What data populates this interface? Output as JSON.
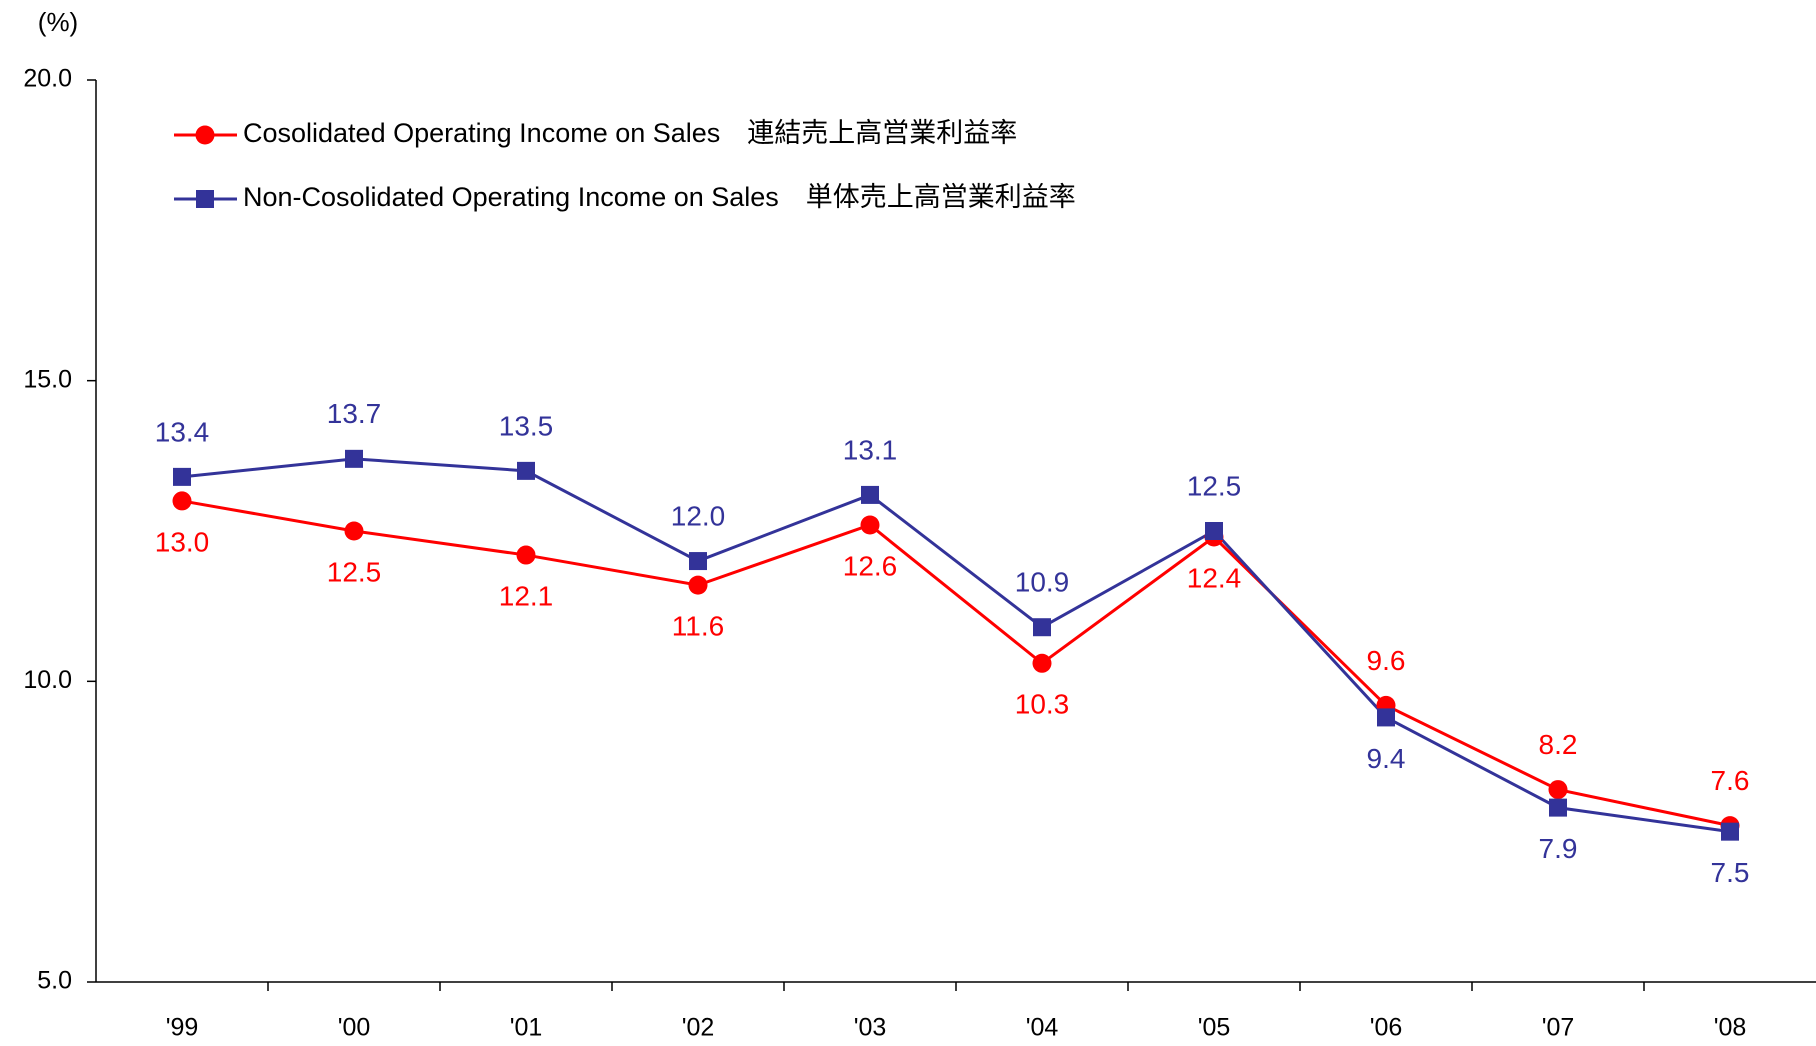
{
  "chart_data": {
    "type": "line",
    "y_axis_label": "(%)",
    "categories": [
      "'99",
      "'00",
      "'01",
      "'02",
      "'03",
      "'04",
      "'05",
      "'06",
      "'07",
      "'08"
    ],
    "series": [
      {
        "name": "Cosolidated Operating Income on Sales　連結売上高営業利益率",
        "color": "#ff0000",
        "marker": "circle",
        "values": [
          13.0,
          12.5,
          12.1,
          11.6,
          12.6,
          10.3,
          12.4,
          9.6,
          8.2,
          7.6
        ],
        "value_labels": [
          "13.0",
          "12.5",
          "12.1",
          "11.6",
          "12.6",
          "10.3",
          "12.4",
          "9.6",
          "8.2",
          "7.6"
        ]
      },
      {
        "name": "Non-Cosolidated Operating Income on Sales　単体売上高営業利益率",
        "color": "#333399",
        "marker": "square",
        "values": [
          13.4,
          13.7,
          13.5,
          12.0,
          13.1,
          10.9,
          12.5,
          9.4,
          7.9,
          7.5
        ],
        "value_labels": [
          "13.4",
          "13.7",
          "13.5",
          "12.0",
          "13.1",
          "10.9",
          "12.5",
          "9.4",
          "7.9",
          "7.5"
        ]
      }
    ],
    "ylim": [
      5,
      20
    ],
    "yticks": [
      {
        "value": 5,
        "label": "5.0"
      },
      {
        "value": 10,
        "label": "10.0"
      },
      {
        "value": 15,
        "label": "15.0"
      },
      {
        "value": 20,
        "label": "20.0"
      }
    ],
    "grid": false,
    "legend": "upper left"
  }
}
